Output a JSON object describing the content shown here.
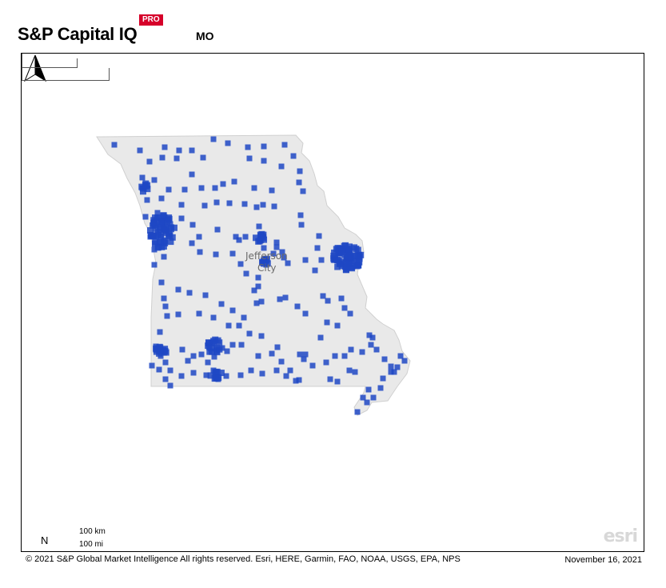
{
  "header": {
    "brand": "S&P Capital IQ",
    "badge": "PRO",
    "state_code": "MO"
  },
  "map": {
    "region": "Missouri",
    "state_fill": "#e9e9e9",
    "marker_color": "#1f48c4",
    "city_labels": [
      "Jefferson",
      "City"
    ],
    "scale_km": "100 km",
    "scale_mi": "100 mi",
    "north_label": "N",
    "basemap_credit_logo": "esri"
  },
  "footer": {
    "copyright": "© 2021 S&P Global Market Intelligence All rights reserved. Esri, HERE, Garmin, FAO, NOAA, USGS, EPA, NPS",
    "date": "November 16, 2021"
  }
}
